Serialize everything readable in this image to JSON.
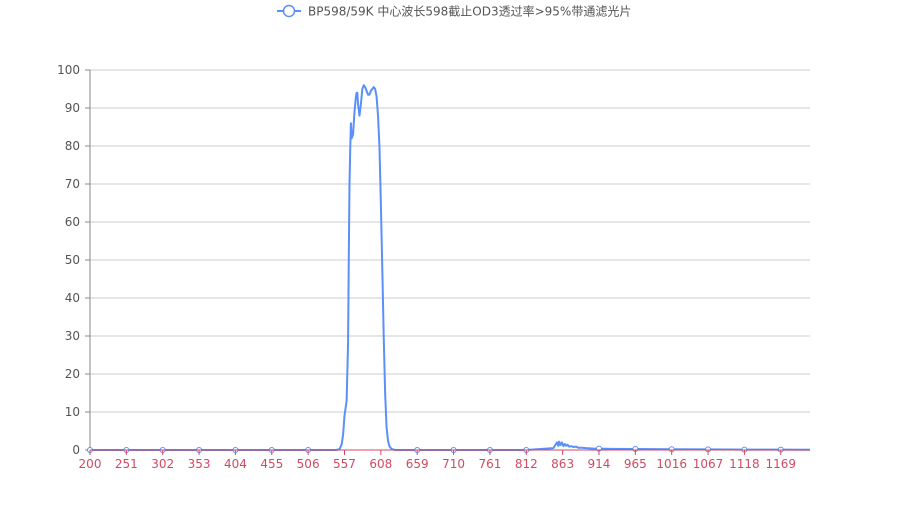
{
  "legend": {
    "label": "BP598/59K 中心波长598截止OD3透过率>95%带通滤光片"
  },
  "colors": {
    "series": "#5b8ff9",
    "grid": "#cccccc",
    "axis": "#d14a61",
    "ytick_text": "#555555"
  },
  "chart_data": {
    "type": "line",
    "title": "",
    "xlabel": "",
    "ylabel": "",
    "x_range": [
      200,
      1210
    ],
    "ylim": [
      0,
      100
    ],
    "grid": "horizontal",
    "legend_position": "top-center",
    "x_ticks": [
      200,
      251,
      302,
      353,
      404,
      455,
      506,
      557,
      608,
      659,
      710,
      761,
      812,
      863,
      914,
      965,
      1016,
      1067,
      1118,
      1169
    ],
    "y_ticks": [
      0,
      10,
      20,
      30,
      40,
      50,
      60,
      70,
      80,
      90,
      100
    ],
    "series": [
      {
        "name": "BP598/59K 中心波长598截止OD3透过率>95%带通滤光片",
        "x": [
          200,
          251,
          302,
          353,
          404,
          455,
          506,
          545,
          550,
          553,
          555,
          557,
          560,
          562,
          563,
          564,
          565,
          566,
          567,
          569,
          571,
          573,
          574,
          575,
          576,
          578,
          580,
          582,
          584,
          586,
          588,
          590,
          592,
          594,
          596,
          598,
          600,
          602,
          604,
          606,
          608,
          610,
          612,
          614,
          616,
          618,
          620,
          622,
          624,
          626,
          628,
          630,
          632,
          634,
          636,
          640,
          645,
          659,
          710,
          761,
          812,
          850,
          855,
          857,
          858,
          860,
          862,
          864,
          866,
          868,
          870,
          872,
          875,
          878,
          881,
          885,
          890,
          896,
          905,
          914,
          930,
          965,
          1016,
          1067,
          1118,
          1169,
          1210
        ],
        "y": [
          0,
          0,
          0,
          0,
          0,
          0,
          0,
          0,
          0.2,
          1.5,
          4,
          9,
          13,
          28,
          50,
          70,
          79,
          86,
          82,
          83,
          89,
          93,
          94,
          94,
          91,
          88,
          91,
          95,
          96,
          95.5,
          94.5,
          93.5,
          93.5,
          94.5,
          95,
          95.5,
          95,
          93,
          88,
          80,
          65,
          48,
          30,
          15,
          6,
          2.5,
          1,
          0.5,
          0.2,
          0.1,
          0,
          0,
          0,
          0,
          0,
          0,
          0,
          0,
          0,
          0,
          0,
          0.5,
          2,
          1.1,
          2.2,
          1.3,
          2.0,
          1.0,
          1.6,
          1.1,
          1.4,
          0.9,
          1.0,
          0.8,
          0.9,
          0.6,
          0.6,
          0.5,
          0.4,
          0.35,
          0.3,
          0.25,
          0.2,
          0.15,
          0.1,
          0.1,
          0.05
        ]
      }
    ]
  }
}
